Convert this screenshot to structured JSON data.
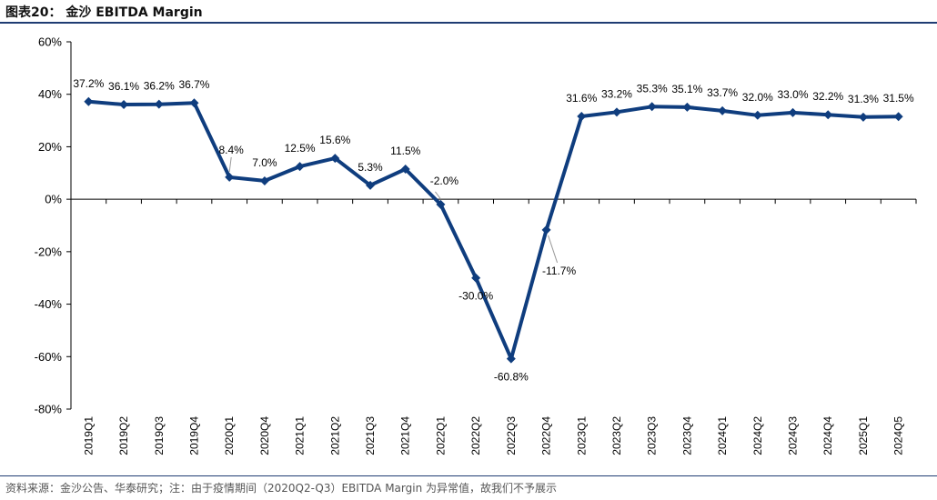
{
  "header": {
    "title": "图表20：  金沙 EBITDA Margin"
  },
  "footer": {
    "source": "资料来源：金沙公告、华泰研究；注：由于疫情期间（2020Q2-Q3）EBITDA Margin 为异常值，故我们不予展示"
  },
  "colors": {
    "line": "#0f3d7e",
    "axis": "#000000",
    "title_rule": "#1f3c73",
    "leader": "#999999"
  },
  "chart_data": {
    "type": "line",
    "title": "金沙 EBITDA Margin",
    "xlabel": "",
    "ylabel": "",
    "ylim": [
      -80,
      60
    ],
    "yticks": [
      60,
      40,
      20,
      0,
      -20,
      -40,
      -60,
      -80
    ],
    "ytick_labels": [
      "60%",
      "40%",
      "20%",
      "0%",
      "-20%",
      "-40%",
      "-60%",
      "-80%"
    ],
    "grid": false,
    "legend": "none",
    "categories": [
      "2019Q1",
      "2019Q2",
      "2019Q3",
      "2019Q4",
      "2020Q1",
      "2020Q4",
      "2021Q1",
      "2021Q2",
      "2021Q3",
      "2021Q4",
      "2022Q1",
      "2022Q2",
      "2022Q3",
      "2022Q4",
      "2023Q1",
      "2023Q2",
      "2023Q3",
      "2023Q4",
      "2024Q1",
      "2024Q2",
      "2024Q3",
      "2024Q4",
      "2025Q1",
      "2024Q5"
    ],
    "values": [
      37.2,
      36.1,
      36.2,
      36.7,
      8.4,
      7.0,
      12.5,
      15.6,
      5.3,
      11.5,
      -2.0,
      -30.0,
      -60.8,
      -11.7,
      31.6,
      33.2,
      35.3,
      35.1,
      33.7,
      32.0,
      33.0,
      32.2,
      31.3,
      31.5
    ],
    "data_labels": [
      "37.2%",
      "36.1%",
      "36.2%",
      "36.7%",
      "8.4%",
      "7.0%",
      "12.5%",
      "15.6%",
      "5.3%",
      "11.5%",
      "-2.0%",
      "-30.0%",
      "-60.8%",
      "-11.7%",
      "31.6%",
      "33.2%",
      "35.3%",
      "35.1%",
      "33.7%",
      "32.0%",
      "33.0%",
      "32.2%",
      "31.3%",
      "31.5%"
    ]
  }
}
